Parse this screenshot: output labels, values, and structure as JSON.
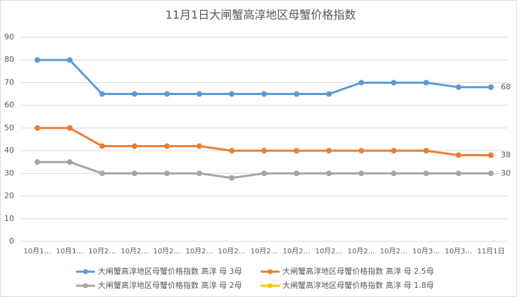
{
  "chart_data": {
    "type": "line",
    "title": "11月1日大闸蟹高淳地区母蟹价格指数",
    "categories": [
      "10月1…",
      "10月1…",
      "10月2…",
      "10月2…",
      "10月2…",
      "10月2…",
      "10月2…",
      "10月2…",
      "10月2…",
      "10月2…",
      "10月2…",
      "10月2…",
      "10月3…",
      "10月3…",
      "11月1日"
    ],
    "series": [
      {
        "name": "大闸蟹高淳地区母蟹价格指数 高淳 母 3母",
        "color": "#5b9bd5",
        "values": [
          80,
          80,
          65,
          65,
          65,
          65,
          65,
          65,
          65,
          65,
          70,
          70,
          70,
          68,
          68
        ]
      },
      {
        "name": "大闸蟹高淳地区母蟹价格指数 高淳 母 2.5母",
        "color": "#ed7d31",
        "values": [
          50,
          50,
          42,
          42,
          42,
          42,
          40,
          40,
          40,
          40,
          40,
          40,
          40,
          38,
          38
        ]
      },
      {
        "name": "大闸蟹高淳地区母蟹价格指数 高淳 母 2母",
        "color": "#a5a5a5",
        "values": [
          35,
          35,
          30,
          30,
          30,
          30,
          28,
          30,
          30,
          30,
          30,
          30,
          30,
          30,
          30
        ]
      },
      {
        "name": "大闸蟹高淳地区母蟹价格指数 高淳 母 1.8母",
        "color": "#ffc000",
        "values": [
          null,
          null,
          null,
          null,
          null,
          null,
          null,
          null,
          null,
          null,
          null,
          null,
          null,
          null,
          null
        ]
      }
    ],
    "ylim": [
      0,
      90
    ],
    "yticks": [
      0,
      10,
      20,
      30,
      40,
      50,
      60,
      70,
      80,
      90
    ],
    "grid": true
  }
}
